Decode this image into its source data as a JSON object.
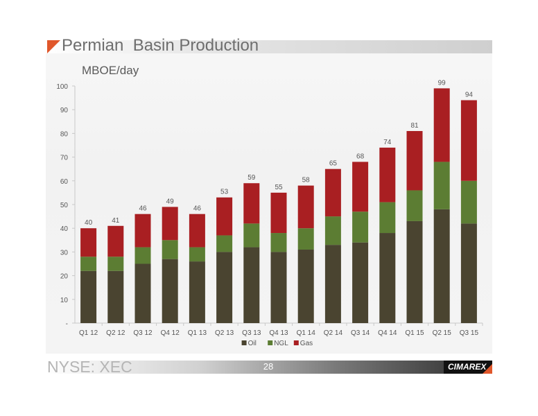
{
  "slide": {
    "title": "Permian  Basin Production",
    "unit_label": "MBOE/day",
    "ticker": "NYSE: XEC",
    "page_number": "28",
    "logo_text": "CIMAREX"
  },
  "colors": {
    "oil": "#4a4430",
    "ngl": "#5c7d33",
    "gas": "#a91f22",
    "accent": "#e0572b"
  },
  "chart_data": {
    "type": "bar",
    "stacked": true,
    "categories": [
      "Q1 12",
      "Q2 12",
      "Q3 12",
      "Q4 12",
      "Q1 13",
      "Q2 13",
      "Q3 13",
      "Q4 13",
      "Q1 14",
      "Q2 14",
      "Q3 14",
      "Q4 14",
      "Q1 15",
      "Q2 15",
      "Q3 15"
    ],
    "series": [
      {
        "name": "Oil",
        "color": "#4a4430",
        "values": [
          22,
          22,
          25,
          27,
          26,
          30,
          32,
          30,
          31,
          33,
          34,
          38,
          43,
          48,
          42
        ]
      },
      {
        "name": "NGL",
        "color": "#5c7d33",
        "values": [
          6,
          6,
          7,
          8,
          6,
          7,
          10,
          8,
          9,
          12,
          13,
          13,
          13,
          20,
          18
        ]
      },
      {
        "name": "Gas",
        "color": "#a91f22",
        "values": [
          12,
          13,
          14,
          14,
          14,
          16,
          17,
          17,
          18,
          20,
          21,
          23,
          25,
          31,
          34
        ]
      }
    ],
    "totals": [
      40,
      41,
      46,
      49,
      46,
      53,
      59,
      55,
      58,
      65,
      68,
      74,
      81,
      99,
      94
    ],
    "yticks": [
      "-",
      "10",
      "20",
      "30",
      "40",
      "50",
      "60",
      "70",
      "80",
      "90",
      "100"
    ],
    "ylim": [
      0,
      100
    ],
    "legend_position": "bottom-center",
    "grid": false
  }
}
